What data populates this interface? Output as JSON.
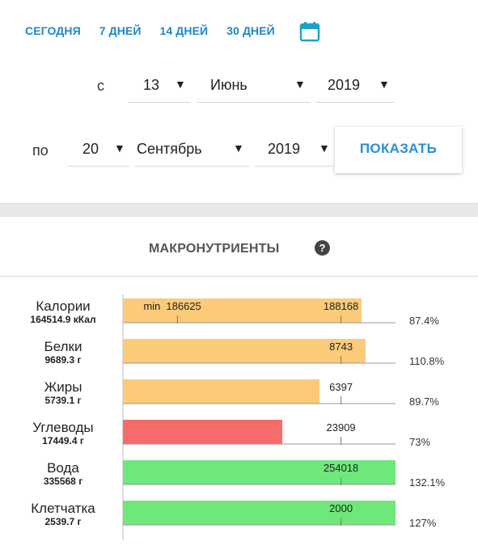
{
  "quick_links": [
    "СЕГОДНЯ",
    "7 ДНЕЙ",
    "14 ДНЕЙ",
    "30 ДНЕЙ"
  ],
  "icons": {
    "calendar": "calendar-icon",
    "help": "help-icon"
  },
  "colors": {
    "link": "#1f86c8",
    "calendar": "#1aa3c8",
    "orange": "#fbcb7a",
    "red": "#f76b6b",
    "green": "#6ee87a"
  },
  "from": {
    "label": "с",
    "day": "13",
    "month": "Июнь",
    "year": "2019"
  },
  "to": {
    "label": "по",
    "day": "20",
    "month": "Сентябрь",
    "year": "2019"
  },
  "show_button": "ПОКАЗАТЬ",
  "macro": {
    "title": "МАКРОНУТРИЕНТЫ",
    "help_symbol": "?"
  },
  "chart_data": {
    "type": "bar",
    "orientation": "horizontal",
    "rows": [
      {
        "name": "Калории",
        "amount": "164514.9 кКал",
        "fraction": 0.874,
        "color": "orange",
        "markers": [
          {
            "label": "min",
            "pos": 0.2
          },
          {
            "label": "186625",
            "pos": 0.2
          },
          {
            "label": "188168",
            "pos": 0.8
          }
        ],
        "percent": "87.4%"
      },
      {
        "name": "Белки",
        "amount": "9689.3 г",
        "fraction": 0.89,
        "color": "orange",
        "markers": [
          {
            "label": "8743",
            "pos": 0.8
          }
        ],
        "percent": "110.8%"
      },
      {
        "name": "Жиры",
        "amount": "5739.1 г",
        "fraction": 0.72,
        "color": "orange",
        "markers": [
          {
            "label": "6397",
            "pos": 0.8
          }
        ],
        "percent": "89.7%"
      },
      {
        "name": "Углеводы",
        "amount": "17449.4 г",
        "fraction": 0.585,
        "color": "red",
        "markers": [
          {
            "label": "23909",
            "pos": 0.8
          }
        ],
        "percent": "73%"
      },
      {
        "name": "Вода",
        "amount": "335568 г",
        "fraction": 1.0,
        "color": "green",
        "markers": [
          {
            "label": "254018",
            "pos": 0.8
          }
        ],
        "percent": "132.1%"
      },
      {
        "name": "Клетчатка",
        "amount": "2539.7 г",
        "fraction": 1.0,
        "color": "green",
        "markers": [
          {
            "label": "2000",
            "pos": 0.8
          }
        ],
        "percent": "127%"
      }
    ]
  }
}
